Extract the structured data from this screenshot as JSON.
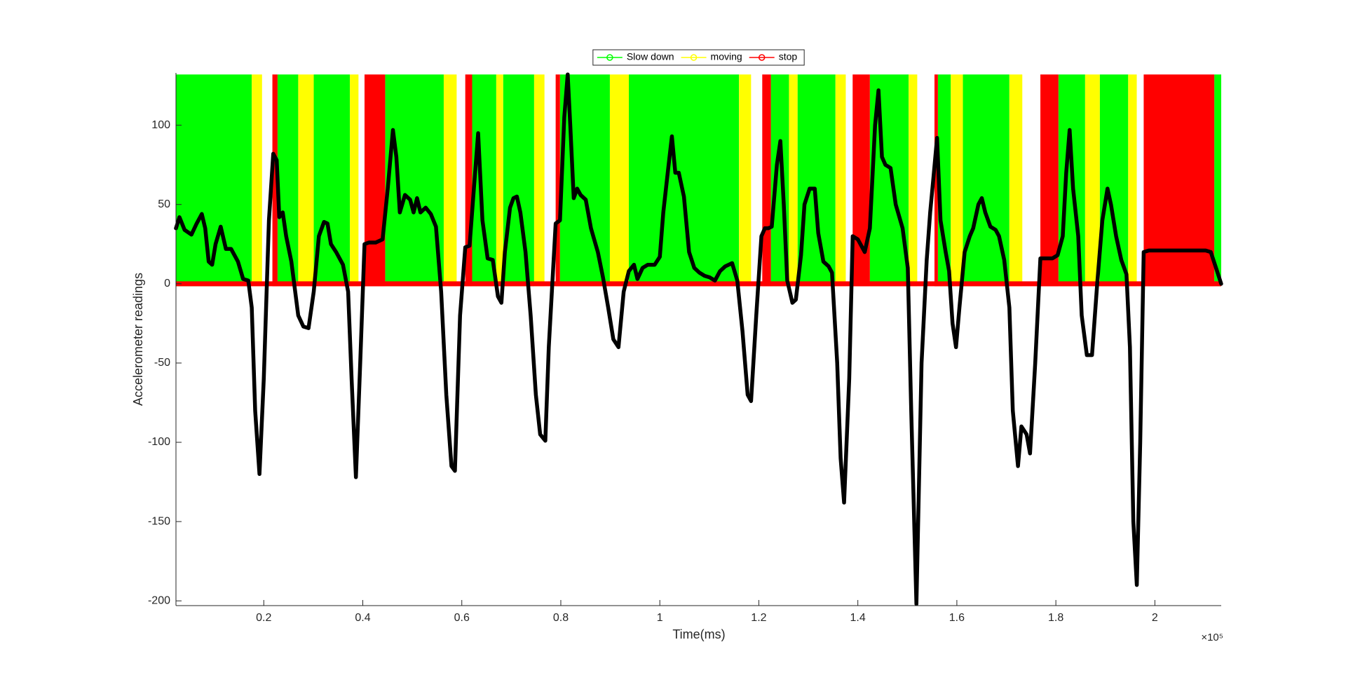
{
  "chart_data": {
    "type": "line",
    "x_label": "Time(ms)",
    "y_label": "Accelerometer readings",
    "x_exponent_label": "×10⁵",
    "xlim": [
      2261,
      213400
    ],
    "ylim": [
      -203,
      133
    ],
    "xticks": [
      {
        "value": 20000,
        "label": "0.2"
      },
      {
        "value": 40000,
        "label": "0.4"
      },
      {
        "value": 60000,
        "label": "0.6"
      },
      {
        "value": 80000,
        "label": "0.8"
      },
      {
        "value": 100000,
        "label": "1"
      },
      {
        "value": 120000,
        "label": "1.2"
      },
      {
        "value": 140000,
        "label": "1.4"
      },
      {
        "value": 160000,
        "label": "1.6"
      },
      {
        "value": 180000,
        "label": "1.8"
      },
      {
        "value": 200000,
        "label": "2"
      }
    ],
    "yticks": [
      -200,
      -150,
      -100,
      -50,
      0,
      50,
      100
    ],
    "legend_location": "north",
    "regions": [
      {
        "name": "Slow down",
        "color": "#00ff00",
        "level": 132,
        "base": 0,
        "intervals": [
          [
            2260,
            17570
          ],
          [
            22780,
            26960
          ],
          [
            30090,
            37390
          ],
          [
            44520,
            56350
          ],
          [
            62090,
            66960
          ],
          [
            68350,
            74610
          ],
          [
            79830,
            89910
          ],
          [
            93740,
            116000
          ],
          [
            122430,
            126090
          ],
          [
            127820,
            135480
          ],
          [
            142430,
            150260
          ],
          [
            156170,
            158780
          ],
          [
            161220,
            170610
          ],
          [
            180520,
            185910
          ],
          [
            188870,
            194610
          ],
          [
            212000,
            213400
          ]
        ]
      },
      {
        "name": "moving",
        "color": "#ffff00",
        "level": 132,
        "base": 0,
        "intervals": [
          [
            17570,
            19650
          ],
          [
            26960,
            30090
          ],
          [
            37390,
            39130
          ],
          [
            56350,
            58960
          ],
          [
            66960,
            68350
          ],
          [
            74610,
            76700
          ],
          [
            89910,
            93740
          ],
          [
            116000,
            118430
          ],
          [
            126090,
            127820
          ],
          [
            135480,
            137560
          ],
          [
            150260,
            152000
          ],
          [
            158780,
            161220
          ],
          [
            170610,
            173220
          ],
          [
            185910,
            188870
          ],
          [
            194610,
            196340
          ]
        ]
      },
      {
        "name": "stop",
        "color": "#ff0000",
        "level": 132,
        "base": 0,
        "intervals": [
          [
            21740,
            22780
          ],
          [
            40350,
            44520
          ],
          [
            60700,
            62090
          ],
          [
            78960,
            79830
          ],
          [
            120690,
            122430
          ],
          [
            138950,
            142430
          ],
          [
            155480,
            156170
          ],
          [
            176870,
            180520
          ],
          [
            197740,
            212000
          ]
        ]
      }
    ],
    "color": "#000000",
    "x": [
      2260,
      2960,
      4000,
      5390,
      6440,
      7480,
      8170,
      8870,
      9570,
      10260,
      11300,
      12350,
      13390,
      14780,
      15830,
      16870,
      17570,
      18260,
      19130,
      20000,
      21040,
      21910,
      22610,
      23130,
      23830,
      24520,
      25570,
      26960,
      28000,
      29040,
      30090,
      31130,
      32170,
      32870,
      33570,
      34610,
      36000,
      37040,
      37740,
      38610,
      39480,
      40350,
      41220,
      42610,
      44000,
      45040,
      46090,
      46780,
      47480,
      48520,
      49570,
      50260,
      50960,
      51650,
      52700,
      53740,
      54780,
      55830,
      56870,
      57910,
      58610,
      59650,
      60700,
      61570,
      62440,
      63300,
      64170,
      65220,
      66260,
      67300,
      68000,
      68700,
      69740,
      70440,
      71130,
      71830,
      72870,
      73910,
      74960,
      75830,
      76870,
      77570,
      78960,
      79830,
      80700,
      81390,
      81910,
      82610,
      83300,
      84000,
      85040,
      86090,
      87480,
      88520,
      89570,
      90610,
      91650,
      92700,
      93740,
      94780,
      95480,
      96520,
      97570,
      98960,
      100000,
      100700,
      101740,
      102440,
      103130,
      103830,
      104870,
      105910,
      106960,
      108000,
      109040,
      110090,
      111130,
      112170,
      113220,
      114610,
      115650,
      116700,
      117740,
      118430,
      119480,
      120520,
      121220,
      121910,
      122610,
      123650,
      124350,
      125040,
      125740,
      126780,
      127480,
      128520,
      129220,
      130260,
      131300,
      132000,
      133040,
      134090,
      134780,
      135830,
      136520,
      137220,
      138260,
      138960,
      140000,
      141390,
      142430,
      143480,
      144170,
      144870,
      145570,
      146610,
      147650,
      149040,
      150090,
      150780,
      151830,
      152870,
      153910,
      154610,
      155300,
      156000,
      156700,
      157740,
      158430,
      159130,
      159830,
      160520,
      161570,
      162610,
      163300,
      164350,
      165040,
      165740,
      166780,
      167830,
      168520,
      169570,
      170610,
      171300,
      172350,
      173040,
      174090,
      174780,
      175830,
      176870,
      177910,
      179300,
      180350,
      181390,
      182090,
      182780,
      183480,
      184520,
      185220,
      186260,
      187300,
      188350,
      189390,
      190430,
      191130,
      192170,
      193220,
      194260,
      194960,
      195650,
      196350,
      197040,
      197740,
      198780,
      201570,
      206780,
      210260,
      211300,
      212350,
      213390
    ],
    "values": [
      35,
      42,
      34,
      31,
      38,
      44,
      35,
      14,
      12,
      25,
      36,
      22,
      22,
      14,
      3,
      2,
      -15,
      -80,
      -120,
      -60,
      40,
      82,
      78,
      42,
      45,
      30,
      14,
      -20,
      -27,
      -28,
      -5,
      30,
      39,
      38,
      25,
      20,
      12,
      -5,
      -60,
      -122,
      -50,
      25,
      26,
      26,
      28,
      60,
      97,
      80,
      45,
      56,
      53,
      45,
      54,
      45,
      48,
      44,
      36,
      -5,
      -70,
      -115,
      -118,
      -20,
      23,
      24,
      60,
      95,
      40,
      16,
      15,
      -8,
      -12,
      20,
      48,
      54,
      55,
      45,
      20,
      -20,
      -70,
      -95,
      -99,
      -40,
      38,
      40,
      105,
      132,
      100,
      54,
      60,
      56,
      53,
      35,
      20,
      4,
      -15,
      -35,
      -40,
      -5,
      8,
      12,
      3,
      10,
      12,
      12,
      17,
      45,
      74,
      93,
      70,
      70,
      55,
      20,
      10,
      7,
      5,
      4,
      2,
      8,
      11,
      13,
      2,
      -30,
      -70,
      -74,
      -20,
      30,
      35,
      35,
      36,
      75,
      90,
      50,
      2,
      -12,
      -10,
      18,
      50,
      60,
      60,
      32,
      14,
      11,
      7,
      -50,
      -110,
      -138,
      -60,
      30,
      28,
      20,
      35,
      100,
      122,
      80,
      75,
      73,
      50,
      35,
      10,
      -80,
      -202,
      -50,
      15,
      45,
      68,
      92,
      40,
      20,
      8,
      -25,
      -40,
      -15,
      20,
      30,
      35,
      50,
      54,
      45,
      36,
      34,
      30,
      15,
      -15,
      -80,
      -115,
      -90,
      -95,
      -107,
      -50,
      16,
      16,
      16,
      18,
      30,
      70,
      97,
      60,
      30,
      -20,
      -45,
      -45,
      0,
      40,
      60,
      50,
      30,
      15,
      6,
      -40,
      -150,
      -190,
      -100,
      20,
      21,
      21,
      21,
      21,
      20,
      10,
      0
    ]
  }
}
